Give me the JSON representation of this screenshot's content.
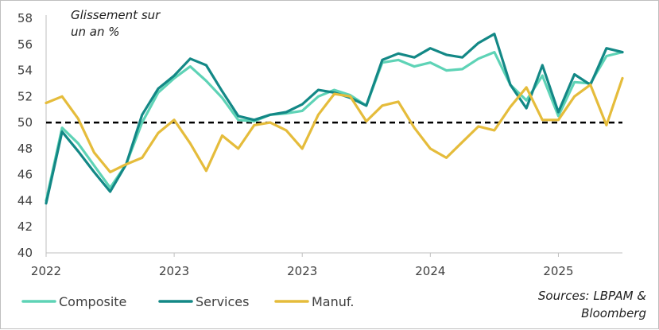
{
  "chart_data": {
    "type": "line",
    "annotation_lines": [
      "Glissement sur",
      "un an %"
    ],
    "source_lines": [
      "Sources: LBPAM &",
      "Bloomberg"
    ],
    "x_ticks": [
      "2022",
      "2023",
      "2023",
      "2024",
      "2025"
    ],
    "y_ticks": [
      "40",
      "42",
      "44",
      "46",
      "48",
      "50",
      "52",
      "54",
      "56",
      "58"
    ],
    "ylim": [
      40,
      58
    ],
    "reference_line": 50,
    "x_start": "2022-01",
    "grid": false,
    "legend_position": "bottom",
    "series": [
      {
        "name": "Composite",
        "color": "#5ed3b6",
        "values": [
          44.0,
          49.6,
          48.4,
          46.7,
          45.0,
          46.8,
          50.0,
          52.3,
          53.4,
          54.3,
          53.2,
          51.9,
          50.2,
          50.1,
          50.6,
          50.7,
          50.9,
          52.0,
          52.5,
          52.1,
          51.3,
          54.6,
          54.8,
          54.3,
          54.6,
          54.0,
          54.1,
          54.9,
          55.4,
          52.9,
          51.7,
          53.6,
          50.5,
          53.1,
          53.0,
          55.1,
          55.4
        ]
      },
      {
        "name": "Services",
        "color": "#138886",
        "values": [
          43.8,
          49.3,
          47.8,
          46.2,
          44.7,
          46.8,
          50.6,
          52.6,
          53.6,
          54.9,
          54.4,
          52.4,
          50.5,
          50.2,
          50.6,
          50.8,
          51.4,
          52.5,
          52.3,
          51.9,
          51.3,
          54.8,
          55.3,
          55.0,
          55.7,
          55.2,
          55.0,
          56.1,
          56.8,
          52.9,
          51.1,
          54.4,
          50.8,
          53.7,
          52.9,
          55.7,
          55.4
        ]
      },
      {
        "name": "Manuf.",
        "color": "#e5bc3b",
        "values": [
          51.5,
          52.0,
          50.3,
          47.7,
          46.2,
          46.8,
          47.3,
          49.2,
          50.2,
          48.4,
          46.3,
          49.0,
          48.0,
          49.8,
          50.0,
          49.4,
          48.0,
          50.6,
          52.2,
          52.0,
          50.1,
          51.3,
          51.6,
          49.6,
          48.0,
          47.3,
          48.5,
          49.7,
          49.4,
          51.2,
          52.7,
          50.2,
          50.2,
          52.0,
          52.9,
          49.8,
          53.4
        ]
      }
    ]
  }
}
